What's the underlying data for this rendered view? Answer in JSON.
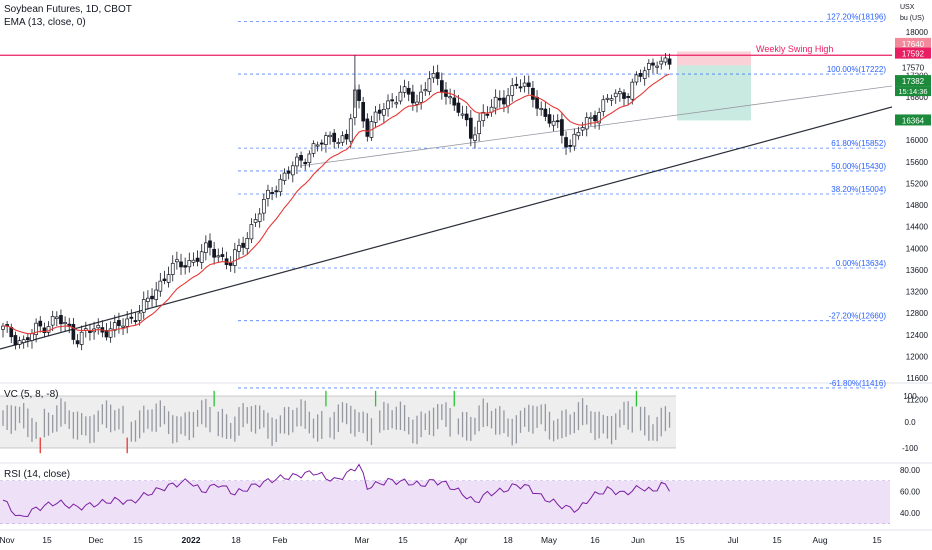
{
  "header": {
    "title": "Soybean Futures, 1D, CBOT",
    "indicator": "EMA (13, close, 0)",
    "currency": "USX",
    "unit": "bu (US)"
  },
  "price_tags": {
    "swing_stop": "17640",
    "high_close": "17592",
    "swing": "17570",
    "last": "17382",
    "countdown": "15:14:36",
    "target": "16364"
  },
  "colors": {
    "up": "#ffffff",
    "down": "#131722",
    "ema": "#e53935",
    "swing_line": "#e91e63",
    "fib": "#2962ff",
    "stop_zone": "#f7c6cc",
    "target_zone": "#bfe6dc",
    "rsi_line": "#7b1fa2",
    "rsi_band": "#ede0f7",
    "vol_green": "#26c632",
    "vol_red": "#e53935"
  },
  "chart_data": [
    {
      "type": "candlestick",
      "title": "Soybean Futures, 1D, CBOT",
      "ylim": [
        11200,
        18400
      ],
      "y_ticks": [
        "18000",
        "17600",
        "17200",
        "16800",
        "16400",
        "16000",
        "15600",
        "15200",
        "14800",
        "14400",
        "14000",
        "13600",
        "13200",
        "12800",
        "12400",
        "12000",
        "11600",
        "11200"
      ],
      "x_ticks": [
        "Nov",
        "15",
        "Dec",
        "15",
        "2022",
        "18",
        "Feb",
        "Mar",
        "15",
        "Apr",
        "18",
        "May",
        "16",
        "Jun",
        "15",
        "Jul",
        "15",
        "Aug",
        "15"
      ],
      "close_anchors": [
        [
          0,
          12500
        ],
        [
          5,
          12250
        ],
        [
          8,
          12500
        ],
        [
          13,
          12700
        ],
        [
          18,
          12350
        ],
        [
          22,
          12500
        ],
        [
          27,
          12500
        ],
        [
          31,
          12700
        ],
        [
          35,
          13000
        ],
        [
          40,
          13600
        ],
        [
          45,
          13750
        ],
        [
          50,
          14000
        ],
        [
          55,
          13700
        ],
        [
          60,
          14400
        ],
        [
          65,
          15100
        ],
        [
          70,
          15500
        ],
        [
          75,
          15850
        ],
        [
          80,
          16100
        ],
        [
          83,
          15950
        ],
        [
          85,
          16900
        ],
        [
          88,
          16200
        ],
        [
          92,
          16600
        ],
        [
          96,
          16900
        ],
        [
          100,
          16700
        ],
        [
          103,
          17200
        ],
        [
          106,
          16950
        ],
        [
          110,
          16600
        ],
        [
          113,
          16050
        ],
        [
          116,
          16500
        ],
        [
          120,
          16700
        ],
        [
          124,
          17050
        ],
        [
          128,
          16850
        ],
        [
          131,
          16400
        ],
        [
          134,
          16250
        ],
        [
          137,
          15900
        ],
        [
          139,
          16150
        ],
        [
          143,
          16500
        ],
        [
          147,
          16800
        ],
        [
          151,
          16900
        ],
        [
          155,
          17300
        ],
        [
          158,
          17500
        ],
        [
          160,
          17380
        ]
      ],
      "ema_label": "EMA (13, close, 0)",
      "swing_label": "Weekly Swing High",
      "swing_level": 17570,
      "fib_levels": [
        {
          "label": "127.20%(18196)",
          "value": 18196
        },
        {
          "label": "100.00%(17222)",
          "value": 17222
        },
        {
          "label": "61.80%(15852)",
          "value": 15852
        },
        {
          "label": "50.00%(15430)",
          "value": 15430
        },
        {
          "label": "38.20%(15004)",
          "value": 15004
        },
        {
          "label": "0.00%(13634)",
          "value": 13634
        },
        {
          "label": "-27.20%(12660)",
          "value": 12660
        },
        {
          "label": "-61.80%(11416)",
          "value": 11416
        }
      ],
      "position": {
        "entry": 17382,
        "stop": 17640,
        "target": 16364
      }
    },
    {
      "type": "bar",
      "title": "VC (5, 8, -8)",
      "ylim": [
        -130,
        130
      ],
      "y_ticks": [
        "100",
        "0.0",
        "-100"
      ],
      "band": [
        -100,
        100
      ],
      "green_at": [
        51,
        78,
        90,
        109,
        153
      ],
      "red_at": [
        9,
        30
      ]
    },
    {
      "type": "line",
      "title": "RSI (14, close)",
      "ylim": [
        25,
        90
      ],
      "y_ticks": [
        "80.00",
        "60.00",
        "40.00"
      ],
      "band": [
        30,
        70
      ],
      "values": [
        [
          0,
          52
        ],
        [
          4,
          35
        ],
        [
          8,
          44
        ],
        [
          13,
          50
        ],
        [
          18,
          45
        ],
        [
          22,
          48
        ],
        [
          27,
          52
        ],
        [
          31,
          50
        ],
        [
          35,
          58
        ],
        [
          40,
          65
        ],
        [
          45,
          70
        ],
        [
          48,
          60
        ],
        [
          52,
          67
        ],
        [
          56,
          58
        ],
        [
          61,
          66
        ],
        [
          66,
          72
        ],
        [
          70,
          74
        ],
        [
          75,
          78
        ],
        [
          80,
          70
        ],
        [
          83,
          76
        ],
        [
          86,
          85
        ],
        [
          88,
          64
        ],
        [
          93,
          70
        ],
        [
          97,
          69
        ],
        [
          101,
          66
        ],
        [
          104,
          70
        ],
        [
          107,
          67
        ],
        [
          111,
          58
        ],
        [
          114,
          50
        ],
        [
          117,
          58
        ],
        [
          121,
          61
        ],
        [
          124,
          66
        ],
        [
          127,
          64
        ],
        [
          130,
          55
        ],
        [
          133,
          50
        ],
        [
          136,
          45
        ],
        [
          139,
          43
        ],
        [
          142,
          55
        ],
        [
          146,
          62
        ],
        [
          150,
          58
        ],
        [
          154,
          64
        ],
        [
          157,
          60
        ],
        [
          159,
          67
        ],
        [
          162,
          61
        ]
      ]
    }
  ]
}
